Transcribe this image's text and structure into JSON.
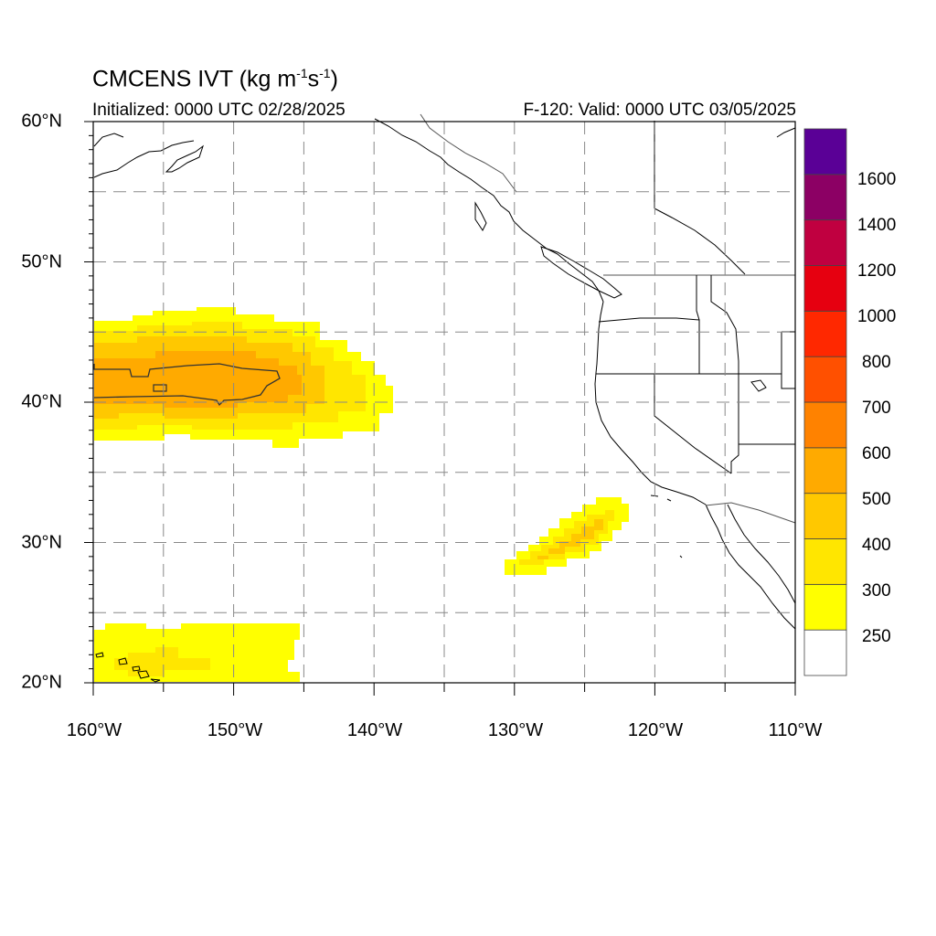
{
  "title": {
    "main": "CMCENS IVT (kg m",
    "exp1": "-1",
    "mid": "s",
    "exp2": "-1",
    "end": ")"
  },
  "subtitle": {
    "initialized": "Initialized: 0000 UTC 02/28/2025",
    "valid": "F-120: Valid: 0000 UTC 03/05/2025"
  },
  "map": {
    "lat_range": [
      20,
      60
    ],
    "lon_range": [
      -160,
      -110
    ],
    "lat_labels": [
      {
        "value": 60,
        "label": "60°N"
      },
      {
        "value": 50,
        "label": "50°N"
      },
      {
        "value": 40,
        "label": "40°N"
      },
      {
        "value": 30,
        "label": "30°N"
      },
      {
        "value": 20,
        "label": "20°N"
      }
    ],
    "lon_labels": [
      {
        "value": -160,
        "label": "160°W"
      },
      {
        "value": -150,
        "label": "150°W"
      },
      {
        "value": -140,
        "label": "140°W"
      },
      {
        "value": -130,
        "label": "130°W"
      },
      {
        "value": -120,
        "label": "120°W"
      },
      {
        "value": -110,
        "label": "110°W"
      }
    ],
    "grid": "dashed",
    "grid_interval_deg": 5
  },
  "colorbar": {
    "labels": [
      "250",
      "300",
      "400",
      "500",
      "600",
      "700",
      "800",
      "1000",
      "1200",
      "1400",
      "1600"
    ],
    "colors": [
      "#ffffff",
      "#ffff00",
      "#ffe600",
      "#ffc800",
      "#ffaa00",
      "#ff8200",
      "#ff5000",
      "#ff2800",
      "#e60010",
      "#c00040",
      "#8c0064",
      "#5a0096"
    ]
  },
  "ivt_features": [
    {
      "region": "North Pacific band near 40N",
      "lat": [
        37.5,
        46.5
      ],
      "lon": [
        -160,
        -139
      ],
      "max_ivt_class": "500"
    },
    {
      "region": "Southwest of California",
      "lat": [
        28,
        33
      ],
      "lon": [
        -130.5,
        -122
      ],
      "max_ivt_class": "400"
    },
    {
      "region": "Near Hawaii",
      "lat": [
        20,
        24
      ],
      "lon": [
        -160,
        -145.5
      ],
      "max_ivt_class": "300"
    }
  ]
}
